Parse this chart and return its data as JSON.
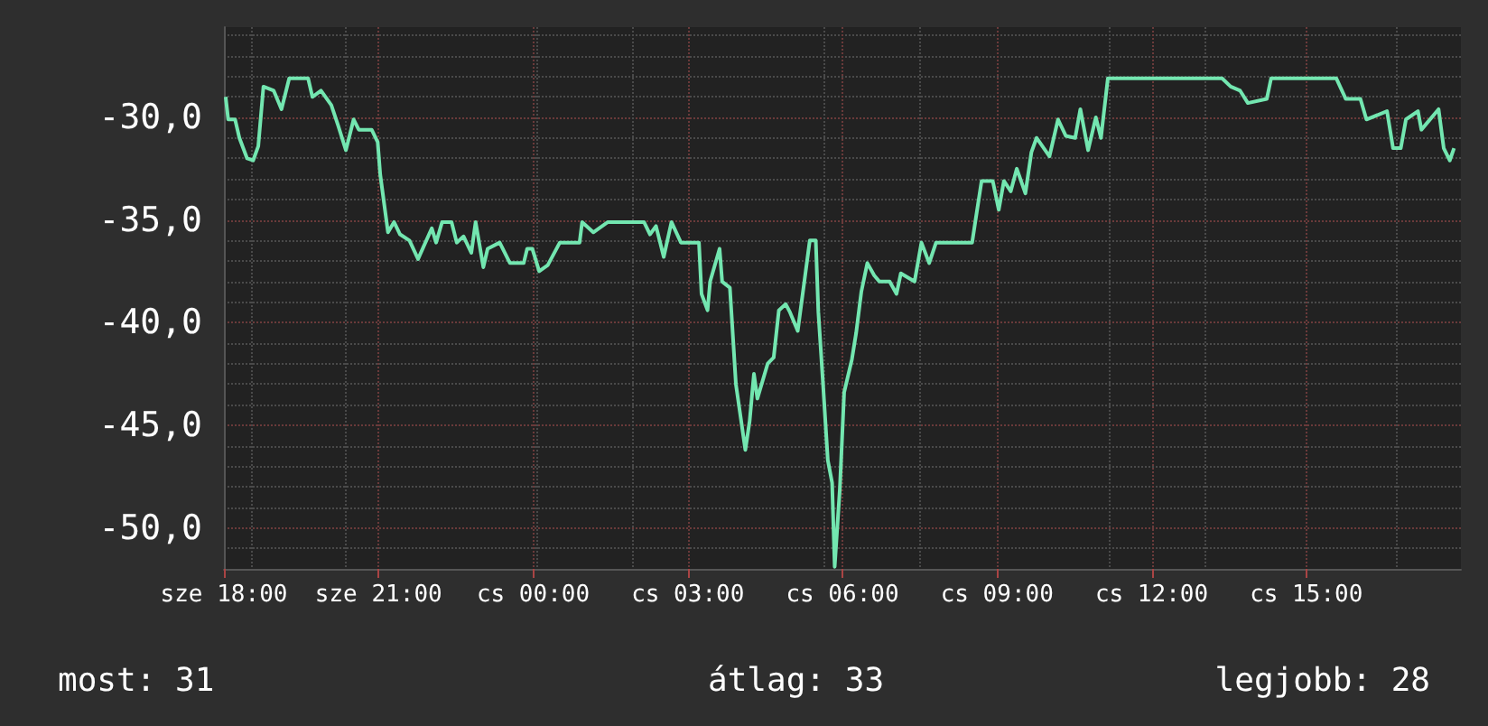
{
  "chart_data": {
    "type": "line",
    "x": [
      "--01-03T18:02",
      "--01-03T18:05",
      "--01-03T18:13",
      "--01-03T18:18",
      "--01-03T18:27",
      "--01-03T18:34",
      "--01-03T18:40",
      "--01-03T18:46",
      "--01-03T18:58",
      "--01-03T19:07",
      "--01-03T19:16",
      "--01-03T19:38",
      "--01-03T19:43",
      "--01-03T19:53",
      "--01-03T20:05",
      "--01-03T20:13",
      "--01-03T20:22",
      "--01-03T20:31",
      "--01-03T20:37",
      "--01-03T20:52",
      "--01-03T20:59",
      "--01-03T21:02",
      "--01-03T21:11",
      "--01-03T21:18",
      "--01-03T21:25",
      "--01-03T21:36",
      "--01-03T21:46",
      "--01-03T22:02",
      "--01-03T22:07",
      "--01-03T22:14",
      "--01-03T22:25",
      "--01-03T22:31",
      "--01-03T22:39",
      "--01-03T22:48",
      "--01-03T22:53",
      "--01-03T23:02",
      "--01-03T23:07",
      "--01-03T23:21",
      "--01-03T23:33",
      "--01-03T23:49",
      "--01-03T23:53",
      "--01-03T23:59",
      "--01-04T00:07",
      "--01-04T00:17",
      "--01-04T00:31",
      "--01-04T00:54",
      "--01-04T00:57",
      "--01-04T01:10",
      "--01-04T01:27",
      "--01-04T02:09",
      "--01-04T02:16",
      "--01-04T02:23",
      "--01-04T02:32",
      "--01-04T02:41",
      "--01-04T02:52",
      "--01-04T03:13",
      "--01-04T03:16",
      "--01-04T03:23",
      "--01-04T03:26",
      "--01-04T03:37",
      "--01-04T03:40",
      "--01-04T03:49",
      "--01-04T03:56",
      "--01-04T04:07",
      "--01-04T04:12",
      "--01-04T04:17",
      "--01-04T04:21",
      "--01-04T04:33",
      "--01-04T04:40",
      "--01-04T04:46",
      "--01-04T04:54",
      "--01-04T04:59",
      "--01-04T05:08",
      "--01-04T05:16",
      "--01-04T05:22",
      "--01-04T05:29",
      "--01-04T05:32",
      "--01-04T05:37",
      "--01-04T05:43",
      "--01-04T05:48",
      "--01-04T05:51",
      "--01-04T05:57",
      "--01-04T06:02",
      "--01-04T06:11",
      "--01-04T06:16",
      "--01-04T06:22",
      "--01-04T06:29",
      "--01-04T06:37",
      "--01-04T06:43",
      "--01-04T06:55",
      "--01-04T07:03",
      "--01-04T07:08",
      "--01-04T07:24",
      "--01-04T07:32",
      "--01-04T07:41",
      "--01-04T07:49",
      "--01-04T08:31",
      "--01-04T08:35",
      "--01-04T08:42",
      "--01-04T08:55",
      "--01-04T09:02",
      "--01-04T09:08",
      "--01-04T09:16",
      "--01-04T09:23",
      "--01-04T09:33",
      "--01-04T09:40",
      "--01-04T09:46",
      "--01-04T10:01",
      "--01-04T10:11",
      "--01-04T10:20",
      "--01-04T10:31",
      "--01-04T10:37",
      "--01-04T10:46",
      "--01-04T10:55",
      "--01-04T11:01",
      "--01-04T11:09",
      "--01-04T13:22",
      "--01-04T13:32",
      "--01-04T13:43",
      "--01-04T13:52",
      "--01-04T14:14",
      "--01-04T14:19",
      "--01-04T15:35",
      "--01-04T15:46",
      "--01-04T16:03",
      "--01-04T16:10",
      "--01-04T16:34",
      "--01-04T16:41",
      "--01-04T16:50",
      "--01-04T16:56",
      "--01-04T17:10",
      "--01-04T17:14",
      "--01-04T17:34",
      "--01-04T17:40",
      "--01-04T17:47",
      "--01-04T17:52"
    ],
    "series": [
      {
        "color": "#73e6b0",
        "values": [
          -29.0,
          -30.1,
          -30.1,
          -31.0,
          -32.0,
          -32.1,
          -31.4,
          -28.5,
          -28.7,
          -29.6,
          -28.1,
          -28.1,
          -29.0,
          -28.7,
          -29.4,
          -30.4,
          -31.6,
          -30.1,
          -30.6,
          -30.6,
          -31.2,
          -32.8,
          -35.6,
          -35.1,
          -35.7,
          -36.0,
          -36.9,
          -35.4,
          -36.1,
          -35.1,
          -35.1,
          -36.1,
          -35.8,
          -36.6,
          -35.1,
          -37.3,
          -36.4,
          -36.1,
          -37.1,
          -37.1,
          -36.4,
          -36.4,
          -37.5,
          -37.2,
          -36.1,
          -36.1,
          -35.1,
          -35.6,
          -35.1,
          -35.1,
          -35.7,
          -35.3,
          -36.8,
          -35.1,
          -36.1,
          -36.1,
          -38.6,
          -39.4,
          -38.0,
          -36.4,
          -38.0,
          -38.3,
          -43.0,
          -46.2,
          -44.8,
          -42.5,
          -43.7,
          -42.0,
          -41.7,
          -39.4,
          -39.1,
          -39.5,
          -40.4,
          -37.9,
          -36.0,
          -36.0,
          -39.5,
          -42.7,
          -46.7,
          -47.8,
          -51.9,
          -48.1,
          -43.4,
          -41.8,
          -40.5,
          -38.5,
          -37.1,
          -37.7,
          -38.0,
          -38.0,
          -38.6,
          -37.6,
          -38.0,
          -36.1,
          -37.1,
          -36.1,
          -36.1,
          -35.0,
          -33.1,
          -33.1,
          -34.5,
          -33.1,
          -33.6,
          -32.5,
          -33.7,
          -31.7,
          -31.0,
          -31.9,
          -30.1,
          -30.9,
          -31.0,
          -29.6,
          -31.6,
          -30.0,
          -31.0,
          -28.1,
          -28.1,
          -28.5,
          -28.7,
          -29.3,
          -29.1,
          -28.1,
          -28.1,
          -29.1,
          -29.1,
          -30.1,
          -29.7,
          -31.5,
          -31.5,
          -30.1,
          -29.7,
          -30.6,
          -29.6,
          -31.5,
          -32.1,
          -31.5
        ]
      }
    ],
    "xlim": [
      "--01-03T18:00",
      "--01-04T18:00"
    ],
    "xticks": [
      {
        "value": "--01-03T18:00",
        "label": "sze 18:00"
      },
      {
        "value": "--01-03T21:00",
        "label": "sze 21:00"
      },
      {
        "value": "--01-04T00:00",
        "label": "cs 00:00"
      },
      {
        "value": "--01-04T03:00",
        "label": "cs 03:00"
      },
      {
        "value": "--01-04T06:00",
        "label": "cs 06:00"
      },
      {
        "value": "--01-04T09:00",
        "label": "cs 09:00"
      },
      {
        "value": "--01-04T12:00",
        "label": "cs 12:00"
      },
      {
        "value": "--01-04T15:00",
        "label": "cs 15:00"
      }
    ],
    "ylim": [
      -52,
      -25.6
    ],
    "yticks": [
      {
        "value": -30,
        "label": "-30,0"
      },
      {
        "value": -35,
        "label": "-35,0"
      },
      {
        "value": -40,
        "label": "-40,0"
      },
      {
        "value": -45,
        "label": "-45,0"
      },
      {
        "value": -50,
        "label": "-50,0"
      }
    ],
    "grid": true,
    "marker": "none",
    "annotations": [
      "most: 31",
      "átlag: 33",
      "legjobb: 28"
    ]
  }
}
